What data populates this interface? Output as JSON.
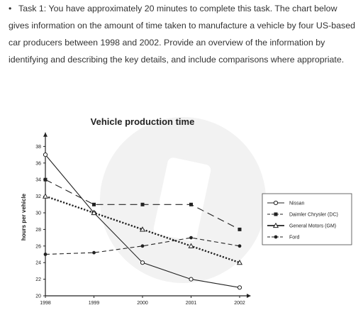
{
  "task": {
    "bullet": "•",
    "text": "Task 1: You have approximately 20 minutes to complete this task. The chart below gives information on the amount of time taken to manufacture a vehicle by four US-based car producers between 1998 and 2002. Provide an overview of the information by identifying and describing the key details, and include comparisons where appropriate."
  },
  "chart_data": {
    "type": "line",
    "title": "Vehicle production time",
    "xlabel": "",
    "ylabel": "hours per vehicle",
    "x": [
      "1998",
      "1999",
      "2000",
      "2001",
      "2002"
    ],
    "y_ticks": [
      20,
      22,
      24,
      26,
      28,
      30,
      32,
      34,
      36,
      38
    ],
    "ylim": [
      20,
      39
    ],
    "grid": false,
    "legend_position": "right",
    "series": [
      {
        "name": "Nissan",
        "values": [
          37,
          30,
          24,
          22,
          21
        ],
        "line": "solid",
        "marker": "open-circle",
        "color": "#222222"
      },
      {
        "name": "Daimler Chrysler (DC)",
        "values": [
          34,
          31,
          31,
          31,
          28
        ],
        "line": "long-dash",
        "marker": "filled-square",
        "color": "#222222"
      },
      {
        "name": "General Motors (GM)",
        "values": [
          32,
          30,
          28,
          26,
          24
        ],
        "line": "dotted",
        "marker": "open-triangle",
        "color": "#222222"
      },
      {
        "name": "Ford",
        "values": [
          25,
          25.2,
          26,
          27,
          26
        ],
        "line": "dashed",
        "marker": "filled-circle",
        "color": "#222222"
      }
    ]
  }
}
